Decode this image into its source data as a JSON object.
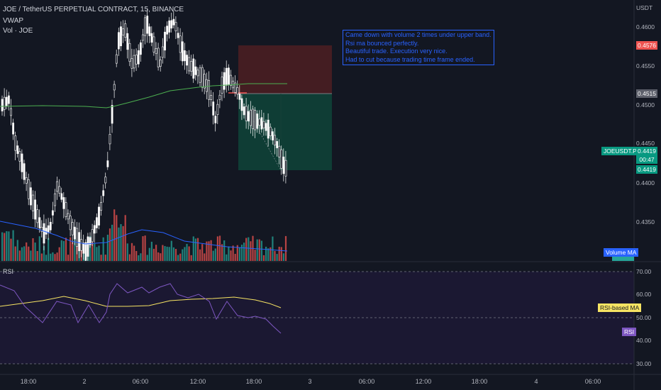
{
  "header": {
    "symbol_line": "JOE / TetherUS PERPETUAL CONTRACT, 15, BINANCE",
    "indicator_vwap": "VWAP",
    "indicator_vol": "Vol · JOE",
    "rsi_label": "RSI"
  },
  "annotation": {
    "lines": [
      "Came down with volume 2 times under upper band.",
      "Rsi ma bounced perfectly.",
      "Beautiful trade. Execution very nice.",
      "Had to cut because trading time frame ended."
    ]
  },
  "price_axis": {
    "currency": "USDT",
    "ticks": [
      "0.4600",
      "0.4550",
      "0.4500",
      "0.4450",
      "0.4400",
      "0.4350"
    ],
    "badge_red": "0.4576",
    "badge_gray": "0.4515",
    "last_symbol": "JOEUSDT.P",
    "last_price": "0.4419",
    "countdown": "00:47",
    "last_price_2": "0.4419",
    "volume_ma_label": "Volume MA"
  },
  "rsi_axis": {
    "ticks": [
      "70.00",
      "60.00",
      "50.00",
      "40.00",
      "30.00"
    ],
    "rsi_ma_label": "RSI-based MA",
    "rsi_label": "RSI"
  },
  "time_axis": {
    "labels": [
      "18:00",
      "2",
      "06:00",
      "12:00",
      "18:00",
      "3",
      "06:00",
      "12:00",
      "18:00",
      "4",
      "06:00"
    ]
  },
  "colors": {
    "background": "#131722",
    "up": "#ffffff",
    "down": "#ffffff",
    "vol_up": "#26a69a",
    "vol_down": "#ef5350",
    "vwap": "#4caf50",
    "annotation": "#2962ff",
    "rsi_line": "#7e57c2",
    "rsi_ma": "#f7e463"
  }
}
